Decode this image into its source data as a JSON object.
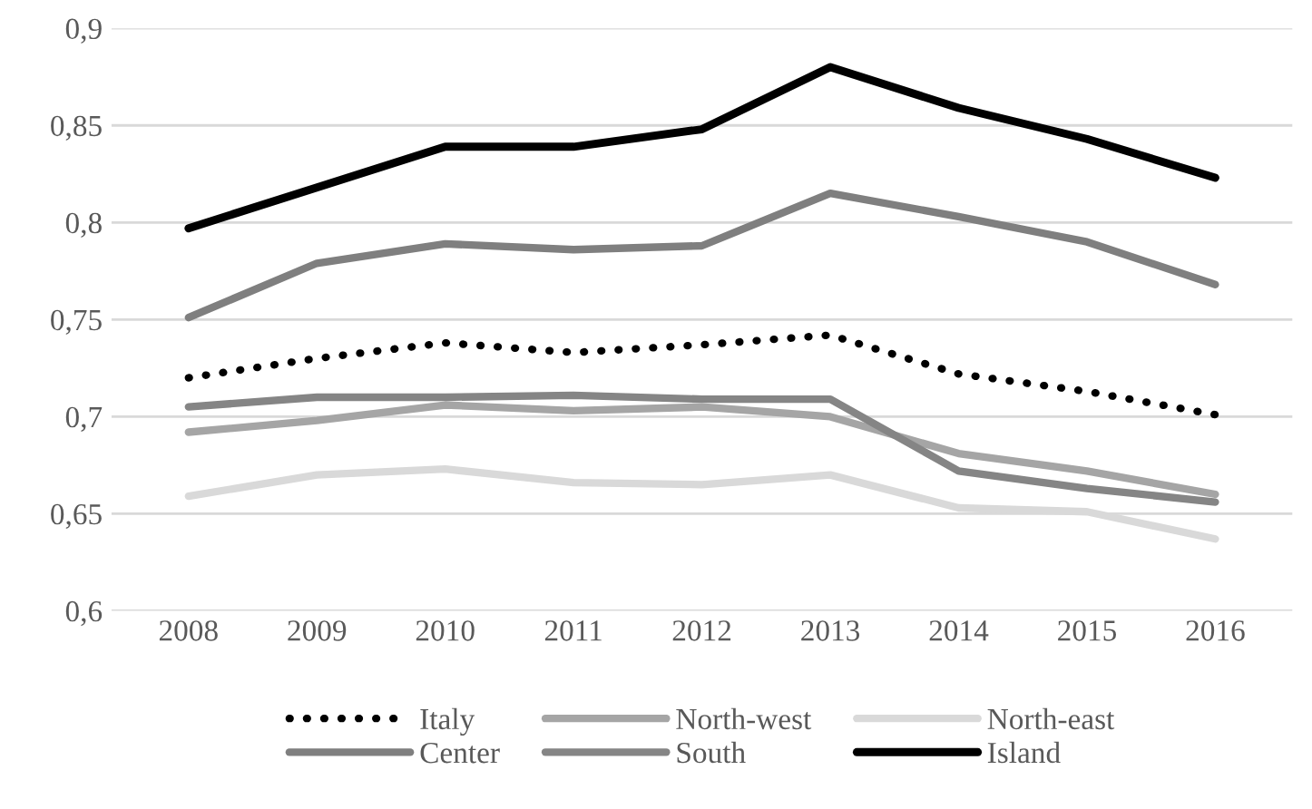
{
  "chart_data": {
    "type": "line",
    "categories": [
      "2008",
      "2009",
      "2010",
      "2011",
      "2012",
      "2013",
      "2014",
      "2015",
      "2016"
    ],
    "ylim": [
      0.6,
      0.9
    ],
    "yticks": [
      {
        "value": 0.6,
        "label": "0,6"
      },
      {
        "value": 0.65,
        "label": "0,65"
      },
      {
        "value": 0.7,
        "label": "0,7"
      },
      {
        "value": 0.75,
        "label": "0,75"
      },
      {
        "value": 0.8,
        "label": "0,8"
      },
      {
        "value": 0.85,
        "label": "0,85"
      },
      {
        "value": 0.9,
        "label": "0,9"
      }
    ],
    "grid": "y",
    "legend": "bottom",
    "series": [
      {
        "name": "Italy",
        "color": "#000000",
        "line_style": "dotted",
        "values": [
          0.72,
          0.73,
          0.738,
          0.733,
          0.737,
          0.742,
          0.722,
          0.713,
          0.701
        ]
      },
      {
        "name": "North-west",
        "color": "#a5a5a5",
        "values": [
          0.692,
          0.698,
          0.706,
          0.703,
          0.705,
          0.7,
          0.681,
          0.672,
          0.66
        ]
      },
      {
        "name": "North-east",
        "color": "#d9d9d9",
        "values": [
          0.659,
          0.67,
          0.673,
          0.666,
          0.665,
          0.67,
          0.653,
          0.651,
          0.637
        ]
      },
      {
        "name": "Center",
        "color": "#7f7f7f",
        "values": [
          0.751,
          0.779,
          0.789,
          0.786,
          0.788,
          0.815,
          0.803,
          0.79,
          0.768
        ]
      },
      {
        "name": "South",
        "color": "#858585",
        "values": [
          0.705,
          0.71,
          0.71,
          0.711,
          0.709,
          0.709,
          0.672,
          0.663,
          0.656
        ]
      },
      {
        "name": "Island",
        "color": "#000000",
        "values": [
          0.797,
          0.818,
          0.839,
          0.839,
          0.848,
          0.88,
          0.859,
          0.843,
          0.823
        ]
      }
    ]
  }
}
